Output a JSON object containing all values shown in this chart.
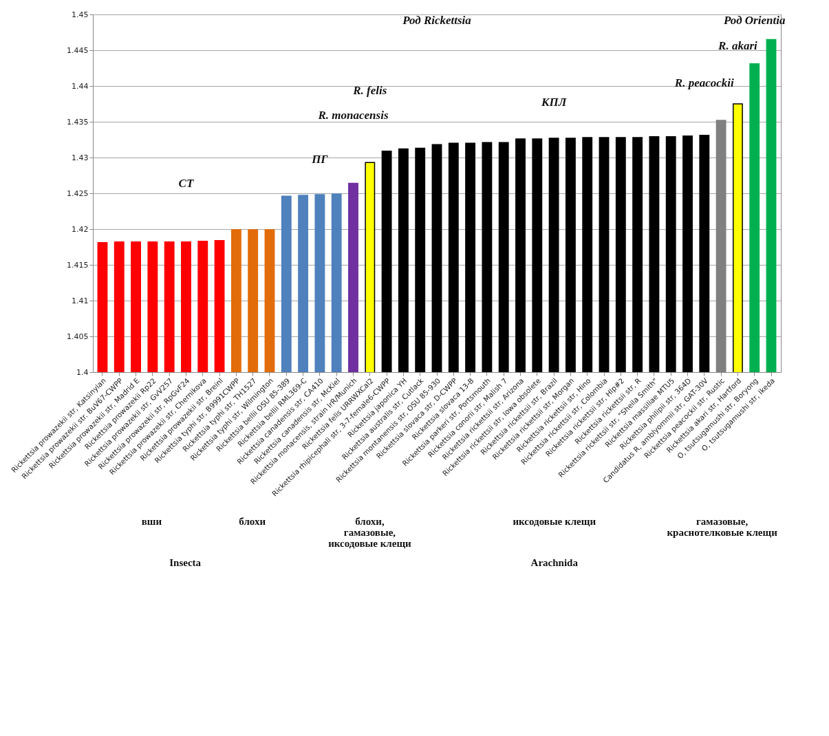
{
  "chart_data": {
    "type": "bar",
    "categories": [
      "Rickettsia prowazekii str, Katsinyian",
      "Rickettsia prowazekii str. BuV67-CWPP",
      "Rickettsia prowazekii str, Madrid E",
      "Rickettsia prowazekii Rp22",
      "Rickettsia prowazekii str, GvV257",
      "Rickettsia prowazekii str, RpGvF24",
      "Rickettsia prowazekii str, Chernikova",
      "Rickettsia prowazekii str, Breinl",
      "Rickettsia typhi str, B9991CWPP",
      "Rickettsia typhi str, TH1527",
      "Rickettsia typhi str, Wilmington",
      "Rickettsia bellii OSU 85-389",
      "Rickettsia bellii RML369-C",
      "Rickettsia canadensis str, CA410",
      "Rickettsia canadensis str, McKiel",
      "Rickettsia monacensis, strain IrR/Munich",
      "Rickettsia felis URRWXCal2",
      "Rickettsia rhipicephali str, 3-7-female6-CWPP",
      "Rickettsia japonica YH",
      "Rickettsia australis str, Cutlack",
      "Rickettsia montanensis str, OSU 85-930",
      "Rickettsia slovaca str, D-CWPP",
      "Rickettsia slovaca 13-B",
      "Rickettsia parkeri str, Portsmouth",
      "Rickettsia conorii str, Malish 7",
      "Rickettsia rickettsii str, Arizona",
      "Rickettsia rickettsii str, Iowa obsolete",
      "Rickettsia rickettsii str, Brazil",
      "Rickettsia rickettsii str, Morgan",
      "Rickettsia rickettsii str, Hino",
      "Rickettsia rickettsii str, Colombia",
      "Rickettsia rickettsii str, Hlp#2",
      "Rickettsia rickettsii str, R",
      "Rickettsia rickettsii str, \"Sheila Smith\"",
      "Rickettsia massiliae MTU5",
      "Rickettsia philipii str, 364D",
      "Candidatus R, amblyommii str, GAT-30V",
      "Rickettsia peacockii str, Rustic",
      "Rickettsia akari str, Hartford",
      "O, tsutsugamushi str, Boryong",
      "O, tsutsugamushi str, Ikeda"
    ],
    "values": [
      1.4181,
      1.4182,
      1.4182,
      1.4182,
      1.4182,
      1.4182,
      1.4183,
      1.4184,
      1.4199,
      1.4199,
      1.4199,
      1.4246,
      1.4247,
      1.4248,
      1.4249,
      1.4264,
      1.4293,
      1.4309,
      1.4312,
      1.4313,
      1.4318,
      1.432,
      1.432,
      1.4321,
      1.4321,
      1.4326,
      1.4326,
      1.4327,
      1.4327,
      1.4328,
      1.4328,
      1.4328,
      1.4328,
      1.4329,
      1.4329,
      1.433,
      1.4331,
      1.4352,
      1.4375,
      1.4431,
      1.4465
    ],
    "colors": [
      "#ff0000",
      "#ff0000",
      "#ff0000",
      "#ff0000",
      "#ff0000",
      "#ff0000",
      "#ff0000",
      "#ff0000",
      "#e36c0a",
      "#e36c0a",
      "#e36c0a",
      "#4f81bd",
      "#4f81bd",
      "#4f81bd",
      "#4f81bd",
      "#7030a0",
      "#ffff00",
      "#000000",
      "#000000",
      "#000000",
      "#000000",
      "#000000",
      "#000000",
      "#000000",
      "#000000",
      "#000000",
      "#000000",
      "#000000",
      "#000000",
      "#000000",
      "#000000",
      "#000000",
      "#000000",
      "#000000",
      "#000000",
      "#000000",
      "#000000",
      "#808080",
      "#ffff00",
      "#00b050",
      "#00b050"
    ],
    "ylim": [
      1.4,
      1.45
    ],
    "yticks": [
      1.4,
      1.405,
      1.41,
      1.415,
      1.42,
      1.425,
      1.43,
      1.435,
      1.44,
      1.445,
      1.45
    ],
    "grid": "y",
    "annotations": [
      "Род Rickettsia",
      "Род Orientia",
      "СТ",
      "ПГ",
      "КПЛ",
      "R. monacensis",
      "R. felis",
      "R. peacockii",
      "R. akari",
      "вши",
      "блохи",
      "блохи, гамазовые, иксодовые клещи",
      "иксодовые клещи",
      "гамазовые, краснотелковые клещи",
      "Insecta",
      "Arachnida"
    ]
  }
}
